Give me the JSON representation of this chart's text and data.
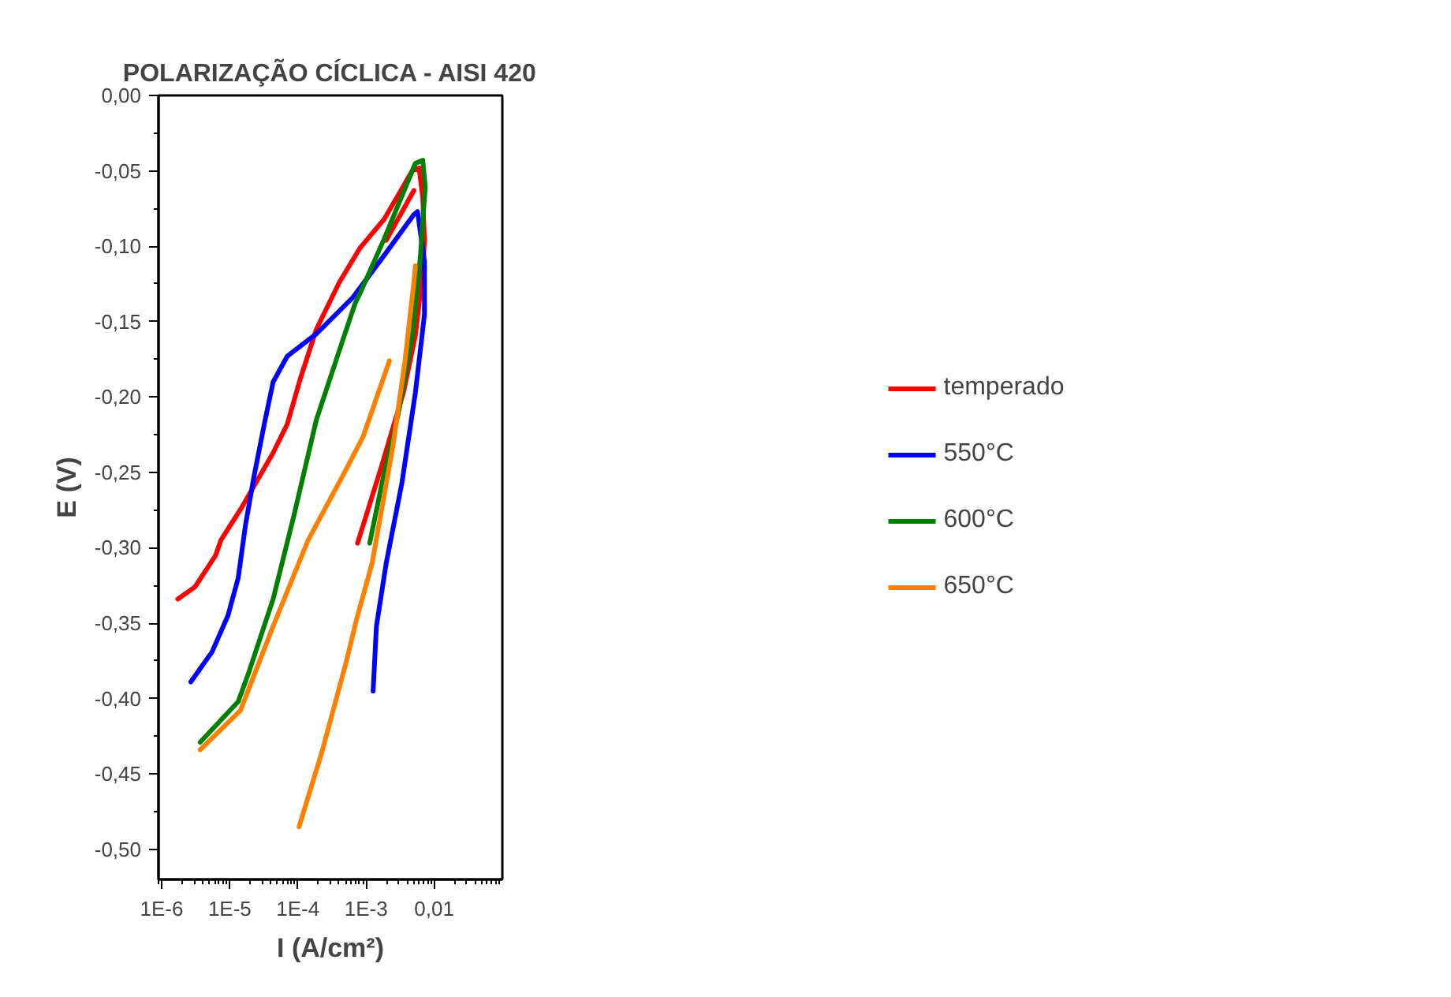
{
  "chart_data": {
    "type": "line",
    "title": "POLARIZAÇÃO CÍCLICA - AISI 420",
    "xlabel": "I (A/cm²)",
    "ylabel": "E (V)",
    "log": "x",
    "grid": false,
    "legend": "right",
    "line_style": "solid",
    "marker": "none",
    "xlim": [
      9e-07,
      0.1
    ],
    "ylim": [
      -0.52,
      0.0
    ],
    "xticks": [
      {
        "value": 1e-06,
        "label": "1E-6"
      },
      {
        "value": 1e-05,
        "label": "1E-5"
      },
      {
        "value": 0.0001,
        "label": "1E-4"
      },
      {
        "value": 0.001,
        "label": "1E-3"
      },
      {
        "value": 0.01,
        "label": "0,01"
      }
    ],
    "yticks": [
      {
        "value": 0.0,
        "label": "0,00"
      },
      {
        "value": -0.05,
        "label": "-0,05"
      },
      {
        "value": -0.1,
        "label": "-0,10"
      },
      {
        "value": -0.15,
        "label": "-0,15"
      },
      {
        "value": -0.2,
        "label": "-0,20"
      },
      {
        "value": -0.25,
        "label": "-0,25"
      },
      {
        "value": -0.3,
        "label": "-0,30"
      },
      {
        "value": -0.35,
        "label": "-0,35"
      },
      {
        "value": -0.4,
        "label": "-0,40"
      },
      {
        "value": -0.45,
        "label": "-0,45"
      },
      {
        "value": -0.5,
        "label": "-0,50"
      }
    ],
    "series": [
      {
        "name": "temperado",
        "color": "#ff0000",
        "x": [
          1.73e-06,
          3.08e-06,
          6.2e-06,
          7.4e-06,
          1.51e-05,
          2.14e-05,
          4.33e-05,
          6.97e-05,
          0.00011,
          0.000187,
          0.000405,
          0.00082,
          0.00185,
          0.00477,
          0.006,
          0.0068,
          0.0072,
          0.0068,
          0.0053,
          0.00354,
          0.00166,
          0.00075,
          null,
          0.00503,
          0.00198
        ],
        "values": [
          -0.334,
          -0.326,
          -0.305,
          -0.295,
          -0.273,
          -0.261,
          -0.237,
          -0.218,
          -0.187,
          -0.155,
          -0.124,
          -0.101,
          -0.082,
          -0.05,
          -0.048,
          -0.068,
          -0.096,
          -0.117,
          -0.159,
          -0.197,
          -0.247,
          -0.297,
          null,
          -0.063,
          -0.096
        ]
      },
      {
        "name": "550°C",
        "color": "#0000ff",
        "x": [
          2.68e-06,
          5.5e-06,
          9.4e-06,
          1.33e-05,
          1.7e-05,
          2.26e-05,
          3.21e-05,
          4.33e-05,
          6.97e-05,
          0.000187,
          0.00064,
          0.00185,
          0.00503,
          0.00569,
          0.0072,
          0.0072,
          0.0068,
          0.0053,
          0.00336,
          0.00198,
          0.00142,
          0.00127
        ],
        "values": [
          -0.389,
          -0.369,
          -0.345,
          -0.32,
          -0.285,
          -0.253,
          -0.218,
          -0.19,
          -0.173,
          -0.158,
          -0.134,
          -0.106,
          -0.079,
          -0.077,
          -0.11,
          -0.145,
          -0.155,
          -0.197,
          -0.257,
          -0.31,
          -0.352,
          -0.395
        ]
      },
      {
        "name": "600°C",
        "color": "#008000",
        "x": [
          3.68e-06,
          1.33e-05,
          1.89e-05,
          4.33e-05,
          8.8e-05,
          0.000187,
          0.00045,
          0.00069,
          0.00082,
          0.00185,
          0.0053,
          0.0068,
          0.0074,
          0.0069,
          0.0063,
          0.00477,
          0.00297,
          0.00185,
          0.00113
        ],
        "values": [
          -0.429,
          -0.402,
          -0.383,
          -0.334,
          -0.278,
          -0.215,
          -0.163,
          -0.138,
          -0.131,
          -0.095,
          -0.045,
          -0.043,
          -0.061,
          -0.079,
          -0.106,
          -0.159,
          -0.211,
          -0.25,
          -0.297
        ]
      },
      {
        "name": "650°C",
        "color": "#ff8000",
        "x": [
          3.68e-06,
          1.43e-05,
          4.33e-05,
          0.000141,
          0.00051,
          0.00091,
          0.0022,
          null,
          0.000104,
          0.000223,
          0.00051,
          0.00072,
          0.00123,
          0.00249,
          0.00373,
          0.00503,
          0.0053
        ],
        "values": [
          -0.434,
          -0.408,
          -0.352,
          -0.295,
          -0.248,
          -0.226,
          -0.176,
          null,
          -0.485,
          -0.436,
          -0.376,
          -0.348,
          -0.31,
          -0.232,
          -0.176,
          -0.124,
          -0.113
        ]
      }
    ]
  }
}
